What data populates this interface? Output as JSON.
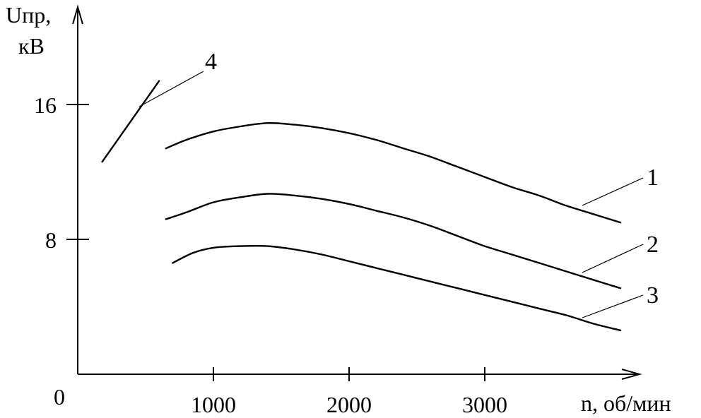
{
  "chart_data": {
    "type": "line",
    "ylabel_line1": "Uпр,",
    "ylabel_line2": "кВ",
    "xlabel": "n, об/мин",
    "origin_label": "0",
    "xlim": [
      -1000,
      4200
    ],
    "ylim": [
      0,
      24
    ],
    "x_ticks": [
      1000,
      2000,
      3000
    ],
    "x_tick_labels": [
      "1000",
      "2000",
      "3000"
    ],
    "y_ticks": [
      8,
      16
    ],
    "y_tick_labels": [
      "8",
      "16"
    ],
    "series": [
      {
        "name": "1",
        "x": [
          650,
          800,
          1000,
          1200,
          1400,
          1600,
          1800,
          2000,
          2200,
          2400,
          2600,
          2800,
          3000,
          3200,
          3400,
          3600,
          3800,
          4000
        ],
        "y": [
          13.4,
          13.9,
          14.4,
          14.7,
          14.9,
          14.8,
          14.6,
          14.3,
          13.9,
          13.4,
          12.9,
          12.3,
          11.7,
          11.1,
          10.6,
          10.0,
          9.5,
          9.0
        ]
      },
      {
        "name": "2",
        "x": [
          650,
          800,
          1000,
          1200,
          1400,
          1600,
          1800,
          2000,
          2200,
          2400,
          2600,
          2800,
          3000,
          3200,
          3400,
          3600,
          3800,
          4000
        ],
        "y": [
          9.2,
          9.6,
          10.2,
          10.5,
          10.7,
          10.6,
          10.4,
          10.1,
          9.7,
          9.3,
          8.8,
          8.2,
          7.6,
          7.1,
          6.6,
          6.1,
          5.6,
          5.1
        ]
      },
      {
        "name": "3",
        "x": [
          700,
          850,
          1000,
          1200,
          1400,
          1600,
          1800,
          2000,
          2200,
          2400,
          2600,
          2800,
          3000,
          3200,
          3400,
          3600,
          3800,
          4000
        ],
        "y": [
          6.6,
          7.2,
          7.5,
          7.6,
          7.6,
          7.4,
          7.1,
          6.7,
          6.3,
          5.9,
          5.5,
          5.1,
          4.7,
          4.3,
          3.9,
          3.5,
          3.0,
          2.6
        ]
      },
      {
        "name": "4",
        "x": [
          180,
          600
        ],
        "y": [
          12.6,
          17.4
        ]
      }
    ],
    "grid": false,
    "legend": "none"
  }
}
